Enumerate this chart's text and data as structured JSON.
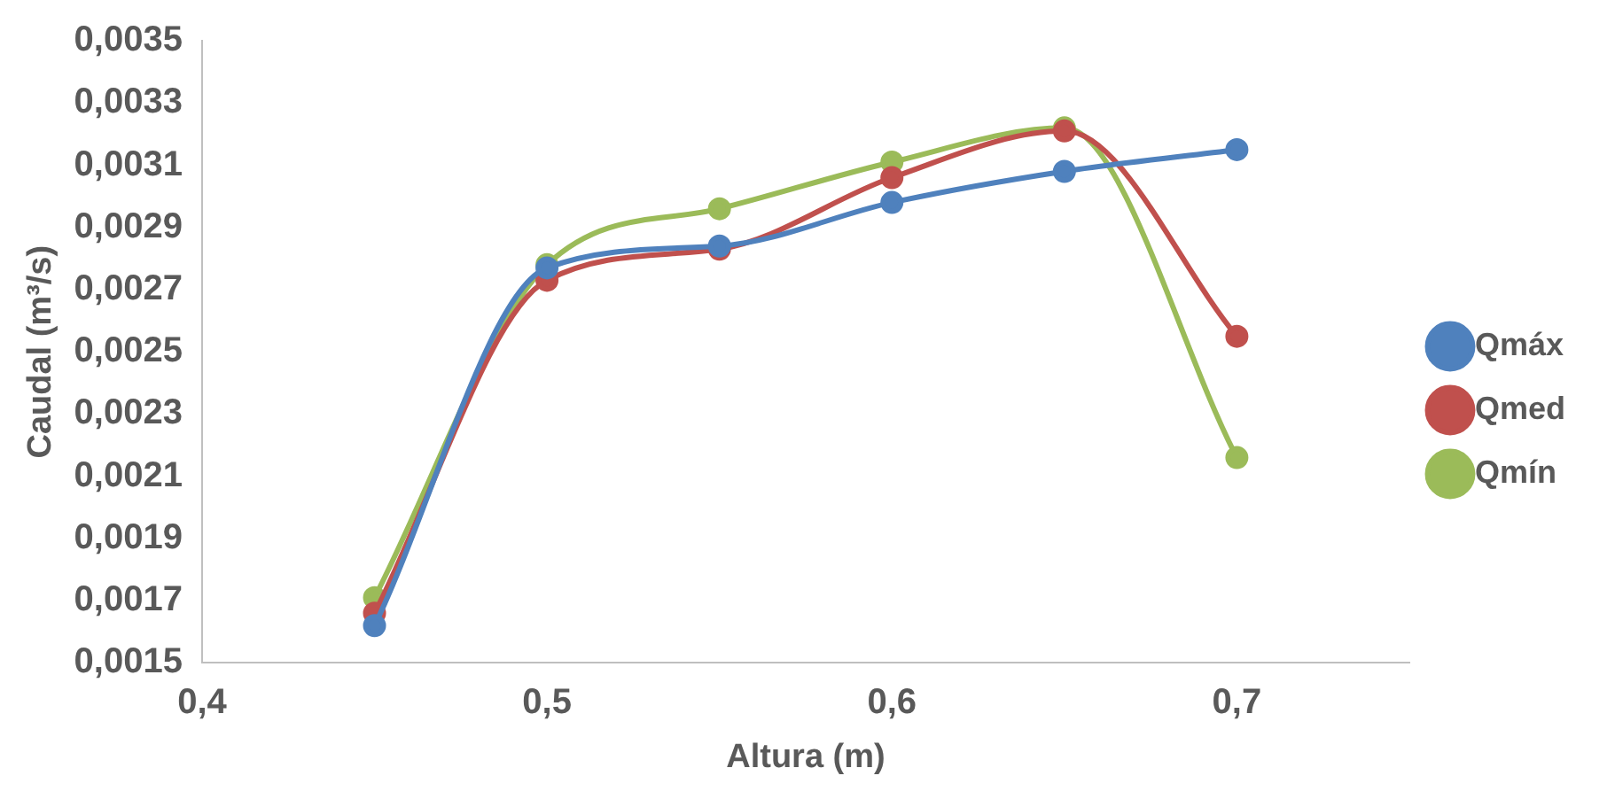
{
  "chart_data": {
    "type": "line",
    "xlabel": "Altura (m)",
    "ylabel": "Caudal (m³/s)",
    "x": [
      0.45,
      0.5,
      0.55,
      0.6,
      0.65,
      0.7
    ],
    "series": [
      {
        "name": "Qmáx",
        "color": "#4f81bd",
        "values": [
          0.00162,
          0.00277,
          0.00284,
          0.00298,
          0.00308,
          0.00315
        ]
      },
      {
        "name": "Qmed",
        "color": "#c0504d",
        "values": [
          0.00166,
          0.00273,
          0.00283,
          0.00306,
          0.00321,
          0.00255
        ]
      },
      {
        "name": "Qmín",
        "color": "#9bbb59",
        "values": [
          0.00171,
          0.00278,
          0.00296,
          0.00311,
          0.00322,
          0.00216
        ]
      }
    ],
    "xlim": [
      0.4,
      0.75
    ],
    "xticks": [
      {
        "value": 0.4,
        "label": "0,4"
      },
      {
        "value": 0.5,
        "label": "0,5"
      },
      {
        "value": 0.6,
        "label": "0,6"
      },
      {
        "value": 0.7,
        "label": "0,7"
      }
    ],
    "ylim": [
      0.0015,
      0.0035
    ],
    "yticks": [
      {
        "value": 0.0015,
        "label": "0,0015"
      },
      {
        "value": 0.0017,
        "label": "0,0017"
      },
      {
        "value": 0.0019,
        "label": "0,0019"
      },
      {
        "value": 0.0021,
        "label": "0,0021"
      },
      {
        "value": 0.0023,
        "label": "0,0023"
      },
      {
        "value": 0.0025,
        "label": "0,0025"
      },
      {
        "value": 0.0027,
        "label": "0,0027"
      },
      {
        "value": 0.0029,
        "label": "0,0029"
      },
      {
        "value": 0.0031,
        "label": "0,0031"
      },
      {
        "value": 0.0033,
        "label": "0,0033"
      },
      {
        "value": 0.0035,
        "label": "0,0035"
      }
    ],
    "grid": false,
    "legend": "right",
    "marker": "circle",
    "line_style": "solid"
  }
}
